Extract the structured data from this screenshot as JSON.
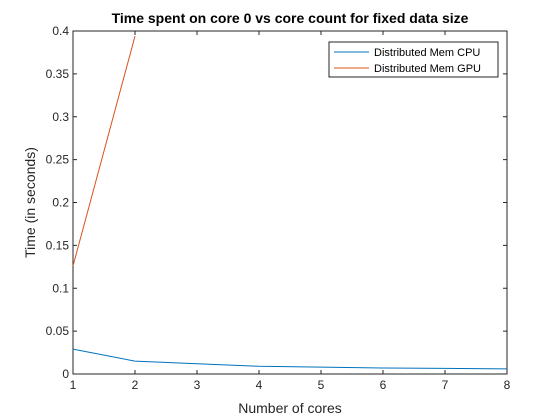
{
  "chart_data": {
    "type": "line",
    "title": "Time spent on core 0 vs core count for fixed data size",
    "xlabel": "Number of cores",
    "ylabel": "Time (in seconds)",
    "xlim": [
      1,
      8
    ],
    "ylim": [
      0,
      0.4
    ],
    "xticks": [
      1,
      2,
      3,
      4,
      5,
      6,
      7,
      8
    ],
    "xtick_labels": [
      "1",
      "2",
      "3",
      "4",
      "5",
      "6",
      "7",
      "8"
    ],
    "yticks": [
      0,
      0.05,
      0.1,
      0.15,
      0.2,
      0.25,
      0.3,
      0.35,
      0.4
    ],
    "ytick_labels": [
      "0",
      "0.05",
      "0.1",
      "0.15",
      "0.2",
      "0.25",
      "0.3",
      "0.35",
      "0.4"
    ],
    "grid": false,
    "legend_position": "top-right",
    "series": [
      {
        "name": "Distributed Mem CPU",
        "color": "#0072bd",
        "x": [
          1,
          2,
          3,
          4,
          5,
          6,
          7,
          8
        ],
        "y": [
          0.029,
          0.015,
          0.012,
          0.009,
          0.008,
          0.007,
          0.0065,
          0.006
        ]
      },
      {
        "name": "Distributed Mem GPU",
        "color": "#d95319",
        "x": [
          1,
          2
        ],
        "y": [
          0.126,
          0.394
        ]
      }
    ]
  }
}
